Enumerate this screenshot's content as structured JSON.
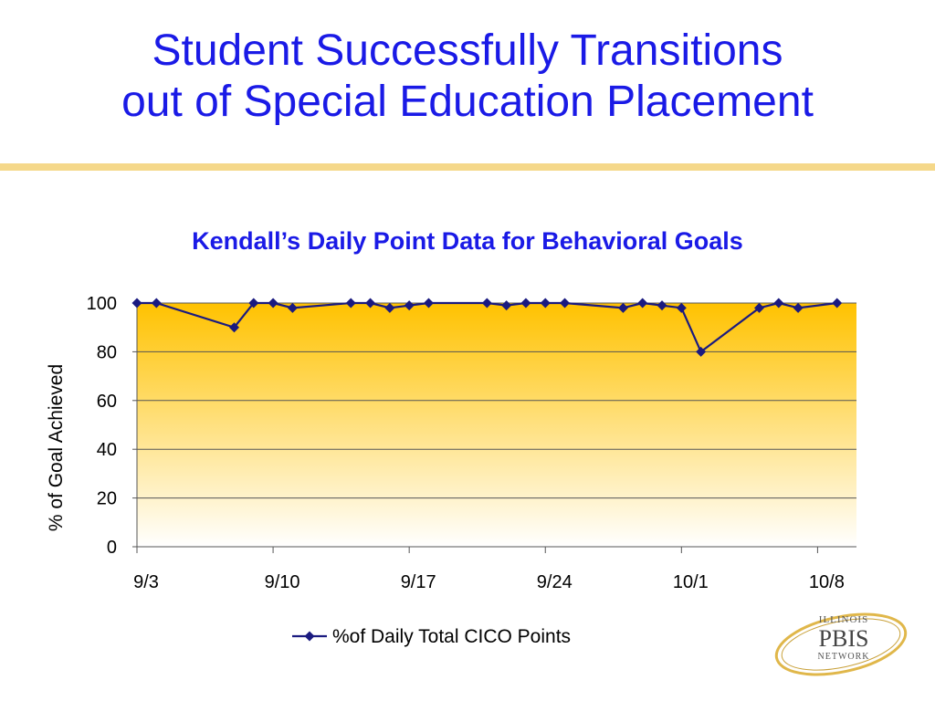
{
  "slide": {
    "title_line1": "Student Successfully Transitions",
    "title_line2": "out of Special Education Placement"
  },
  "logo": {
    "line1": "ILLINOIS",
    "line2": "PBIS",
    "line3": "NETWORK"
  },
  "colors": {
    "title": "#1a1ae6",
    "divider": "#f5d88a",
    "series": "#1a1a80",
    "plot_top": "#ffc200",
    "plot_bottom": "#ffffff"
  },
  "chart_data": {
    "type": "line",
    "title": "Kendall’s Daily Point Data for Behavioral Goals",
    "xlabel": "",
    "ylabel": "% of Goal Achieved",
    "ylim": [
      0,
      100
    ],
    "yticks": [
      0,
      20,
      40,
      60,
      80,
      100
    ],
    "x_range": [
      "2000-09-03",
      "2000-10-10"
    ],
    "xticks": [
      {
        "date": "2000-09-03",
        "label": "9/3"
      },
      {
        "date": "2000-09-10",
        "label": "9/10"
      },
      {
        "date": "2000-09-17",
        "label": "9/17"
      },
      {
        "date": "2000-09-24",
        "label": "9/24"
      },
      {
        "date": "2000-10-01",
        "label": "10/1"
      },
      {
        "date": "2000-10-08",
        "label": "10/8"
      }
    ],
    "grid": true,
    "legend": "bottom",
    "series": [
      {
        "name": "%of Daily Total CICO Points",
        "points": [
          {
            "x": "2000-09-03",
            "y": 100
          },
          {
            "x": "2000-09-04",
            "y": 100
          },
          {
            "x": "2000-09-08",
            "y": 90
          },
          {
            "x": "2000-09-09",
            "y": 100
          },
          {
            "x": "2000-09-10",
            "y": 100
          },
          {
            "x": "2000-09-11",
            "y": 98
          },
          {
            "x": "2000-09-14",
            "y": 100
          },
          {
            "x": "2000-09-15",
            "y": 100
          },
          {
            "x": "2000-09-16",
            "y": 98
          },
          {
            "x": "2000-09-17",
            "y": 99
          },
          {
            "x": "2000-09-18",
            "y": 100
          },
          {
            "x": "2000-09-21",
            "y": 100
          },
          {
            "x": "2000-09-22",
            "y": 99
          },
          {
            "x": "2000-09-23",
            "y": 100
          },
          {
            "x": "2000-09-24",
            "y": 100
          },
          {
            "x": "2000-09-25",
            "y": 100
          },
          {
            "x": "2000-09-28",
            "y": 98
          },
          {
            "x": "2000-09-29",
            "y": 100
          },
          {
            "x": "2000-09-30",
            "y": 99
          },
          {
            "x": "2000-10-01",
            "y": 98
          },
          {
            "x": "2000-10-02",
            "y": 80
          },
          {
            "x": "2000-10-05",
            "y": 98
          },
          {
            "x": "2000-10-06",
            "y": 100
          },
          {
            "x": "2000-10-07",
            "y": 98
          },
          {
            "x": "2000-10-09",
            "y": 100
          }
        ]
      }
    ]
  }
}
